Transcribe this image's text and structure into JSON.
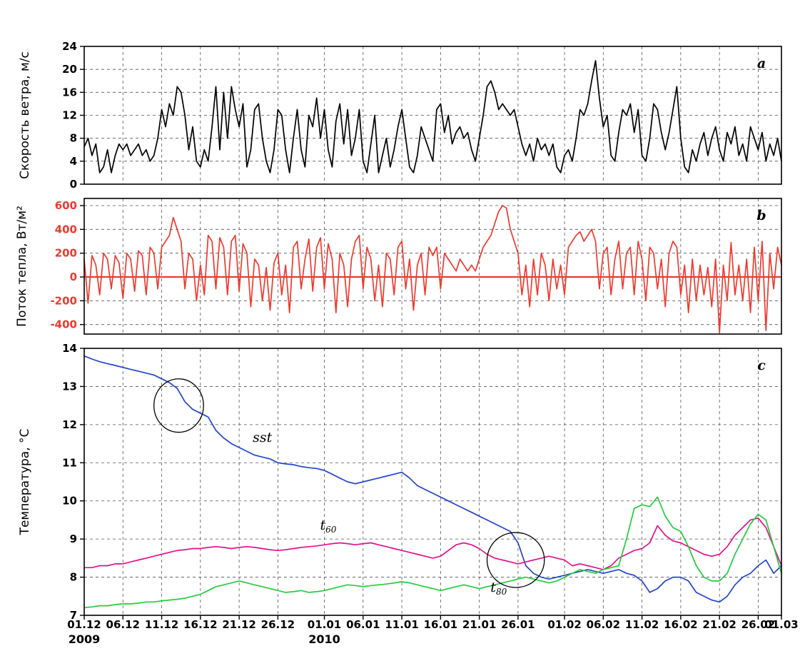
{
  "figure": {
    "background": "#ffffff",
    "border_color": "#000000",
    "grid_color": "#555555"
  },
  "x_axis": {
    "domain": [
      0,
      90
    ],
    "tick_days": [
      0,
      5,
      10,
      15,
      20,
      25,
      31,
      36,
      41,
      46,
      51,
      56,
      62,
      67,
      72,
      77,
      82,
      87,
      90
    ],
    "tick_labels": [
      "01.12",
      "06.12",
      "11.12",
      "16.12",
      "21.12",
      "26.12",
      "01.01",
      "06.01",
      "11.01",
      "16.01",
      "21.01",
      "26.01",
      "01.02",
      "06.02",
      "11.02",
      "16.02",
      "21.02",
      "26.02",
      "01.03"
    ],
    "year_labels": [
      {
        "text": "2009",
        "day": 0
      },
      {
        "text": "2010",
        "day": 31
      }
    ]
  },
  "chart_data": [
    {
      "id": "wind",
      "type": "line",
      "letter": "a",
      "ylabel": "Скорость ветра, м/с",
      "ylim": [
        0,
        24
      ],
      "yticks": [
        0,
        4,
        8,
        12,
        16,
        20,
        24
      ],
      "tick_color": "#000000",
      "series": [
        {
          "name": "wind-speed",
          "color": "#000000",
          "x_step": 0.5,
          "values": [
            6.5,
            8,
            5,
            7,
            2,
            3,
            6,
            2,
            5,
            7,
            6,
            7,
            5,
            6,
            7,
            5,
            6,
            4,
            5,
            8,
            13,
            10,
            14,
            12,
            17,
            16,
            12,
            6,
            10,
            4,
            3,
            6,
            4,
            10,
            17,
            6,
            16,
            8,
            17,
            13,
            10,
            14,
            3,
            6,
            13,
            14,
            8,
            4,
            2,
            6,
            13,
            12,
            6,
            2,
            8,
            13,
            6,
            3,
            12,
            10,
            15,
            8,
            13,
            6,
            3,
            11,
            14,
            7,
            13,
            5,
            8,
            13,
            4,
            2,
            7,
            12,
            2,
            5,
            8,
            3,
            6,
            10,
            13,
            8,
            3,
            2,
            5,
            10,
            8,
            6,
            4,
            13,
            14,
            9,
            12,
            7,
            9,
            10,
            8,
            9,
            6,
            4,
            8,
            12,
            17,
            18,
            16,
            13,
            14,
            13,
            12,
            13,
            10,
            7,
            5,
            7,
            4,
            8,
            6,
            7,
            5,
            7,
            3,
            2,
            5,
            6,
            4,
            8,
            13,
            12,
            14,
            18,
            21.5,
            15,
            10,
            12,
            5,
            4,
            9,
            13,
            12,
            14,
            9,
            13,
            5,
            4,
            8,
            14,
            13,
            9,
            6,
            9,
            13,
            17,
            8,
            3,
            2,
            6,
            4,
            7,
            9,
            5,
            8,
            10,
            6,
            4,
            9,
            7,
            10,
            5,
            7,
            4,
            10,
            8,
            6,
            9,
            4,
            7,
            5,
            8,
            4
          ]
        }
      ]
    },
    {
      "id": "heat",
      "type": "line",
      "letter": "b",
      "ylabel": "Поток тепла, Вт/м²",
      "ylim": [
        -480,
        660
      ],
      "yticks": [
        -400,
        -200,
        0,
        200,
        400,
        600
      ],
      "tick_color": "#ee3a2d",
      "zero_line": true,
      "zero_line_color": "#ee3a2d",
      "series": [
        {
          "name": "heat-flux",
          "color": "#ee3a2d",
          "x_step": 0.5,
          "values": [
            150,
            -220,
            180,
            100,
            -150,
            200,
            150,
            -100,
            180,
            120,
            -180,
            200,
            150,
            -120,
            220,
            180,
            -150,
            250,
            200,
            -100,
            250,
            300,
            350,
            500,
            400,
            300,
            -100,
            200,
            150,
            -200,
            100,
            -150,
            350,
            300,
            -100,
            330,
            250,
            -150,
            300,
            350,
            -120,
            280,
            200,
            -250,
            150,
            100,
            -200,
            80,
            -280,
            120,
            200,
            -150,
            100,
            -300,
            250,
            300,
            -100,
            150,
            320,
            -120,
            250,
            330,
            -100,
            280,
            150,
            -300,
            200,
            100,
            -250,
            150,
            300,
            350,
            -100,
            250,
            150,
            -200,
            100,
            -250,
            200,
            150,
            -150,
            250,
            300,
            -100,
            150,
            -280,
            100,
            200,
            -150,
            250,
            180,
            250,
            -100,
            200,
            150,
            100,
            50,
            150,
            100,
            50,
            100,
            50,
            150,
            250,
            300,
            350,
            450,
            550,
            600,
            580,
            400,
            300,
            200,
            -150,
            100,
            -250,
            150,
            -150,
            200,
            100,
            -200,
            150,
            -100,
            100,
            -150,
            250,
            300,
            350,
            380,
            300,
            350,
            400,
            300,
            -100,
            200,
            250,
            -150,
            150,
            300,
            -100,
            200,
            250,
            -150,
            300,
            150,
            -200,
            250,
            200,
            -100,
            150,
            -250,
            200,
            300,
            250,
            -150,
            100,
            -300,
            150,
            -200,
            100,
            -150,
            80,
            -250,
            150,
            -470,
            100,
            -200,
            290,
            -150,
            100,
            -200,
            150,
            -300,
            250,
            -200,
            300,
            -450,
            200,
            -100,
            250,
            100
          ]
        }
      ]
    },
    {
      "id": "temp",
      "type": "line",
      "letter": "c",
      "ylabel": "Температура, °C",
      "ylim": [
        7,
        14
      ],
      "yticks": [
        7,
        8,
        9,
        10,
        11,
        12,
        13,
        14
      ],
      "tick_color": "#000000",
      "series": [
        {
          "name": "sst",
          "color": "#2244cc",
          "x_step": 1,
          "values": [
            13.8,
            13.72,
            13.65,
            13.6,
            13.55,
            13.5,
            13.45,
            13.4,
            13.35,
            13.3,
            13.2,
            13.1,
            12.95,
            12.6,
            12.4,
            12.3,
            12.2,
            11.85,
            11.65,
            11.5,
            11.4,
            11.3,
            11.2,
            11.15,
            11.1,
            11.0,
            10.97,
            10.95,
            10.9,
            10.87,
            10.85,
            10.8,
            10.7,
            10.6,
            10.5,
            10.45,
            10.5,
            10.55,
            10.6,
            10.65,
            10.7,
            10.75,
            10.6,
            10.4,
            10.3,
            10.2,
            10.1,
            10.0,
            9.9,
            9.8,
            9.7,
            9.6,
            9.5,
            9.4,
            9.3,
            9.2,
            8.9,
            8.3,
            8.1,
            8.0,
            7.95,
            8.0,
            8.05,
            8.1,
            8.15,
            8.2,
            8.15,
            8.1,
            8.15,
            8.2,
            8.1,
            8.05,
            7.9,
            7.6,
            7.7,
            7.9,
            8.0,
            8.0,
            7.9,
            7.6,
            7.5,
            7.4,
            7.35,
            7.5,
            7.8,
            8.0,
            8.1,
            8.3,
            8.45,
            8.1,
            8.3
          ]
        },
        {
          "name": "t60",
          "color": "#e0148c",
          "x_step": 1,
          "values": [
            8.25,
            8.25,
            8.3,
            8.3,
            8.35,
            8.35,
            8.4,
            8.45,
            8.5,
            8.55,
            8.6,
            8.65,
            8.7,
            8.72,
            8.75,
            8.75,
            8.78,
            8.8,
            8.78,
            8.75,
            8.78,
            8.8,
            8.78,
            8.75,
            8.72,
            8.7,
            8.72,
            8.75,
            8.78,
            8.8,
            8.82,
            8.85,
            8.88,
            8.9,
            8.88,
            8.85,
            8.88,
            8.9,
            8.85,
            8.8,
            8.75,
            8.7,
            8.65,
            8.6,
            8.55,
            8.5,
            8.55,
            8.7,
            8.85,
            8.9,
            8.85,
            8.75,
            8.6,
            8.5,
            8.45,
            8.4,
            8.35,
            8.4,
            8.45,
            8.5,
            8.55,
            8.5,
            8.45,
            8.3,
            8.35,
            8.3,
            8.25,
            8.2,
            8.3,
            8.5,
            8.6,
            8.7,
            8.75,
            8.9,
            9.35,
            9.1,
            8.95,
            8.9,
            8.8,
            8.7,
            8.6,
            8.55,
            8.6,
            8.8,
            9.1,
            9.3,
            9.5,
            9.55,
            9.3,
            8.8,
            8.3
          ]
        },
        {
          "name": "t80",
          "color": "#23cc3f",
          "x_step": 1,
          "values": [
            7.2,
            7.22,
            7.25,
            7.25,
            7.28,
            7.3,
            7.3,
            7.32,
            7.35,
            7.35,
            7.38,
            7.4,
            7.42,
            7.45,
            7.5,
            7.55,
            7.65,
            7.75,
            7.8,
            7.85,
            7.9,
            7.85,
            7.8,
            7.75,
            7.7,
            7.65,
            7.6,
            7.62,
            7.65,
            7.6,
            7.62,
            7.65,
            7.7,
            7.75,
            7.8,
            7.78,
            7.75,
            7.78,
            7.8,
            7.82,
            7.85,
            7.88,
            7.85,
            7.8,
            7.75,
            7.7,
            7.65,
            7.7,
            7.75,
            7.8,
            7.75,
            7.7,
            7.75,
            7.8,
            7.85,
            7.9,
            7.95,
            8.0,
            7.95,
            7.9,
            7.85,
            7.9,
            8.0,
            8.1,
            8.2,
            8.15,
            8.1,
            8.2,
            8.25,
            8.3,
            9.0,
            9.8,
            9.9,
            9.85,
            10.1,
            9.6,
            9.3,
            9.2,
            8.8,
            8.3,
            8.0,
            7.9,
            7.9,
            8.1,
            8.6,
            9.0,
            9.4,
            9.65,
            9.5,
            8.8,
            8.1
          ]
        }
      ],
      "annotations": {
        "circles": [
          {
            "day": 12.2,
            "value": 12.5,
            "rx_days": 3.2,
            "ry_units": 0.7
          },
          {
            "day": 55.7,
            "value": 8.45,
            "rx_days": 3.7,
            "ry_units": 0.72
          }
        ],
        "labels": [
          {
            "text": "sst",
            "sub": "",
            "day": 23,
            "value": 11.55
          },
          {
            "text": "t",
            "sub": "60",
            "day": 31.5,
            "value": 9.25
          },
          {
            "text": "t",
            "sub": "80",
            "day": 53.5,
            "value": 7.62
          }
        ]
      }
    }
  ]
}
